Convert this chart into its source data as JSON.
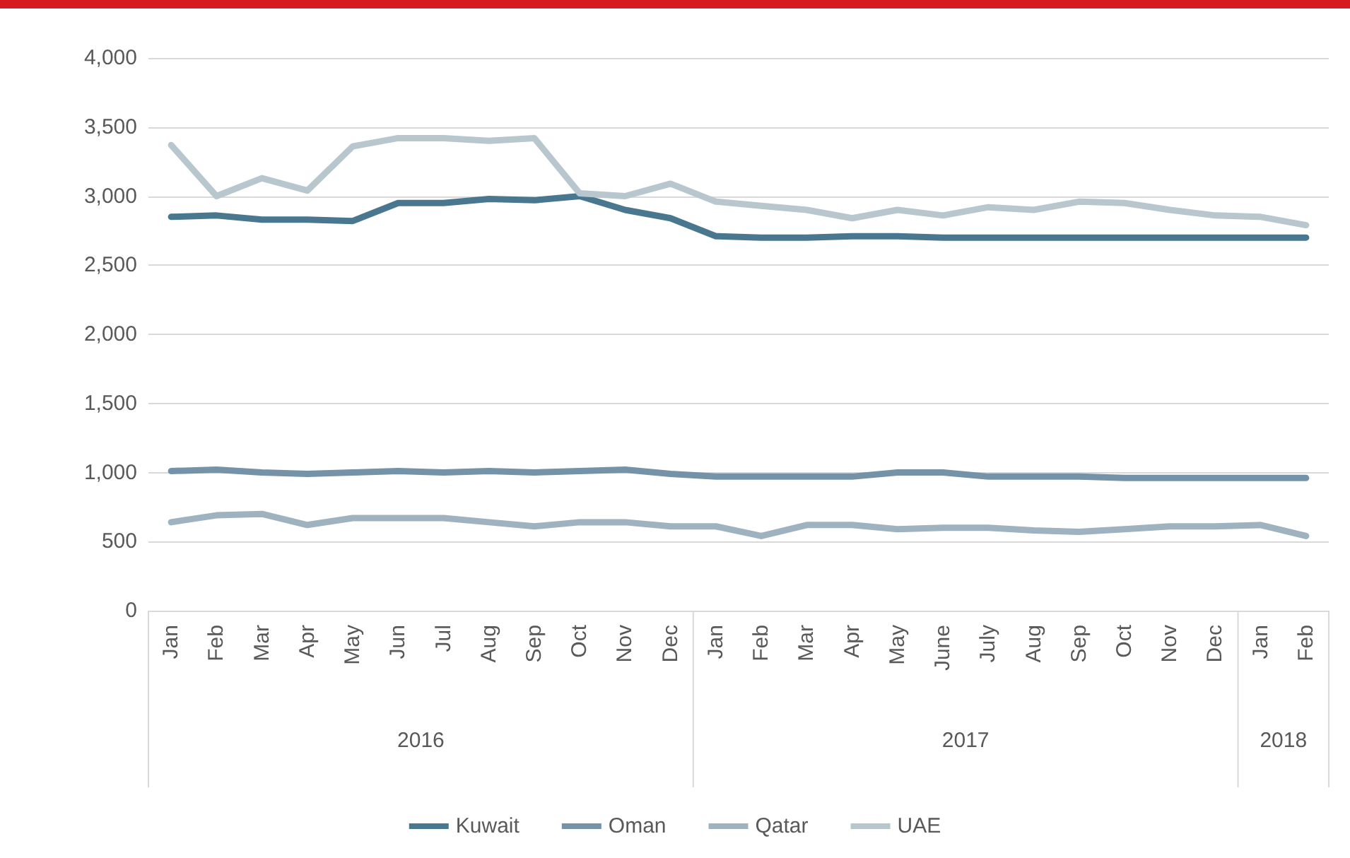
{
  "chart_data": {
    "type": "line",
    "categories": [
      "Jan",
      "Feb",
      "Mar",
      "Apr",
      "May",
      "Jun",
      "Jul",
      "Aug",
      "Sep",
      "Oct",
      "Nov",
      "Dec",
      "Jan",
      "Feb",
      "Mar",
      "Apr",
      "May",
      "June",
      "July",
      "Aug",
      "Sep",
      "Oct",
      "Nov",
      "Dec",
      "Jan",
      "Feb"
    ],
    "series": [
      {
        "name": "Kuwait",
        "color": "#4a7790",
        "values": [
          2850,
          2860,
          2830,
          2830,
          2820,
          2950,
          2950,
          2980,
          2970,
          3000,
          2900,
          2840,
          2710,
          2700,
          2700,
          2710,
          2710,
          2700,
          2700,
          2700,
          2700,
          2700,
          2700,
          2700,
          2700,
          2700
        ]
      },
      {
        "name": "Oman",
        "color": "#7492a8",
        "values": [
          1010,
          1020,
          1000,
          990,
          1000,
          1010,
          1000,
          1010,
          1000,
          1010,
          1020,
          990,
          970,
          970,
          970,
          970,
          1000,
          1000,
          970,
          970,
          970,
          960,
          960,
          960,
          960,
          960
        ]
      },
      {
        "name": "Qatar",
        "color": "#9fb2c0",
        "values": [
          640,
          690,
          700,
          620,
          670,
          670,
          670,
          640,
          610,
          640,
          640,
          610,
          610,
          540,
          620,
          620,
          590,
          600,
          600,
          580,
          570,
          590,
          610,
          610,
          620,
          540
        ]
      },
      {
        "name": "UAE",
        "color": "#b8c6ce",
        "values": [
          3370,
          3000,
          3130,
          3040,
          3360,
          3420,
          3420,
          3400,
          3420,
          3020,
          3000,
          3090,
          2960,
          2930,
          2900,
          2840,
          2900,
          2860,
          2920,
          2900,
          2960,
          2950,
          2900,
          2860,
          2850,
          2790
        ]
      }
    ],
    "annotations": [
      "2016",
      "2017",
      "2018"
    ],
    "ylim": [
      0,
      4000
    ],
    "yticks": [
      0,
      500,
      {
        "value": 1000,
        "label": "1,000"
      },
      {
        "value": 1500,
        "label": "1,500"
      },
      {
        "value": 2000,
        "label": "2,000"
      },
      {
        "value": 2500,
        "label": "2,500"
      },
      {
        "value": 3000,
        "label": "3,000"
      },
      {
        "value": 3500,
        "label": "3,500"
      },
      {
        "value": 4000,
        "label": "4,000"
      }
    ],
    "grid": "y",
    "legend": "bottom",
    "marker": "none",
    "line_style": "solid"
  }
}
